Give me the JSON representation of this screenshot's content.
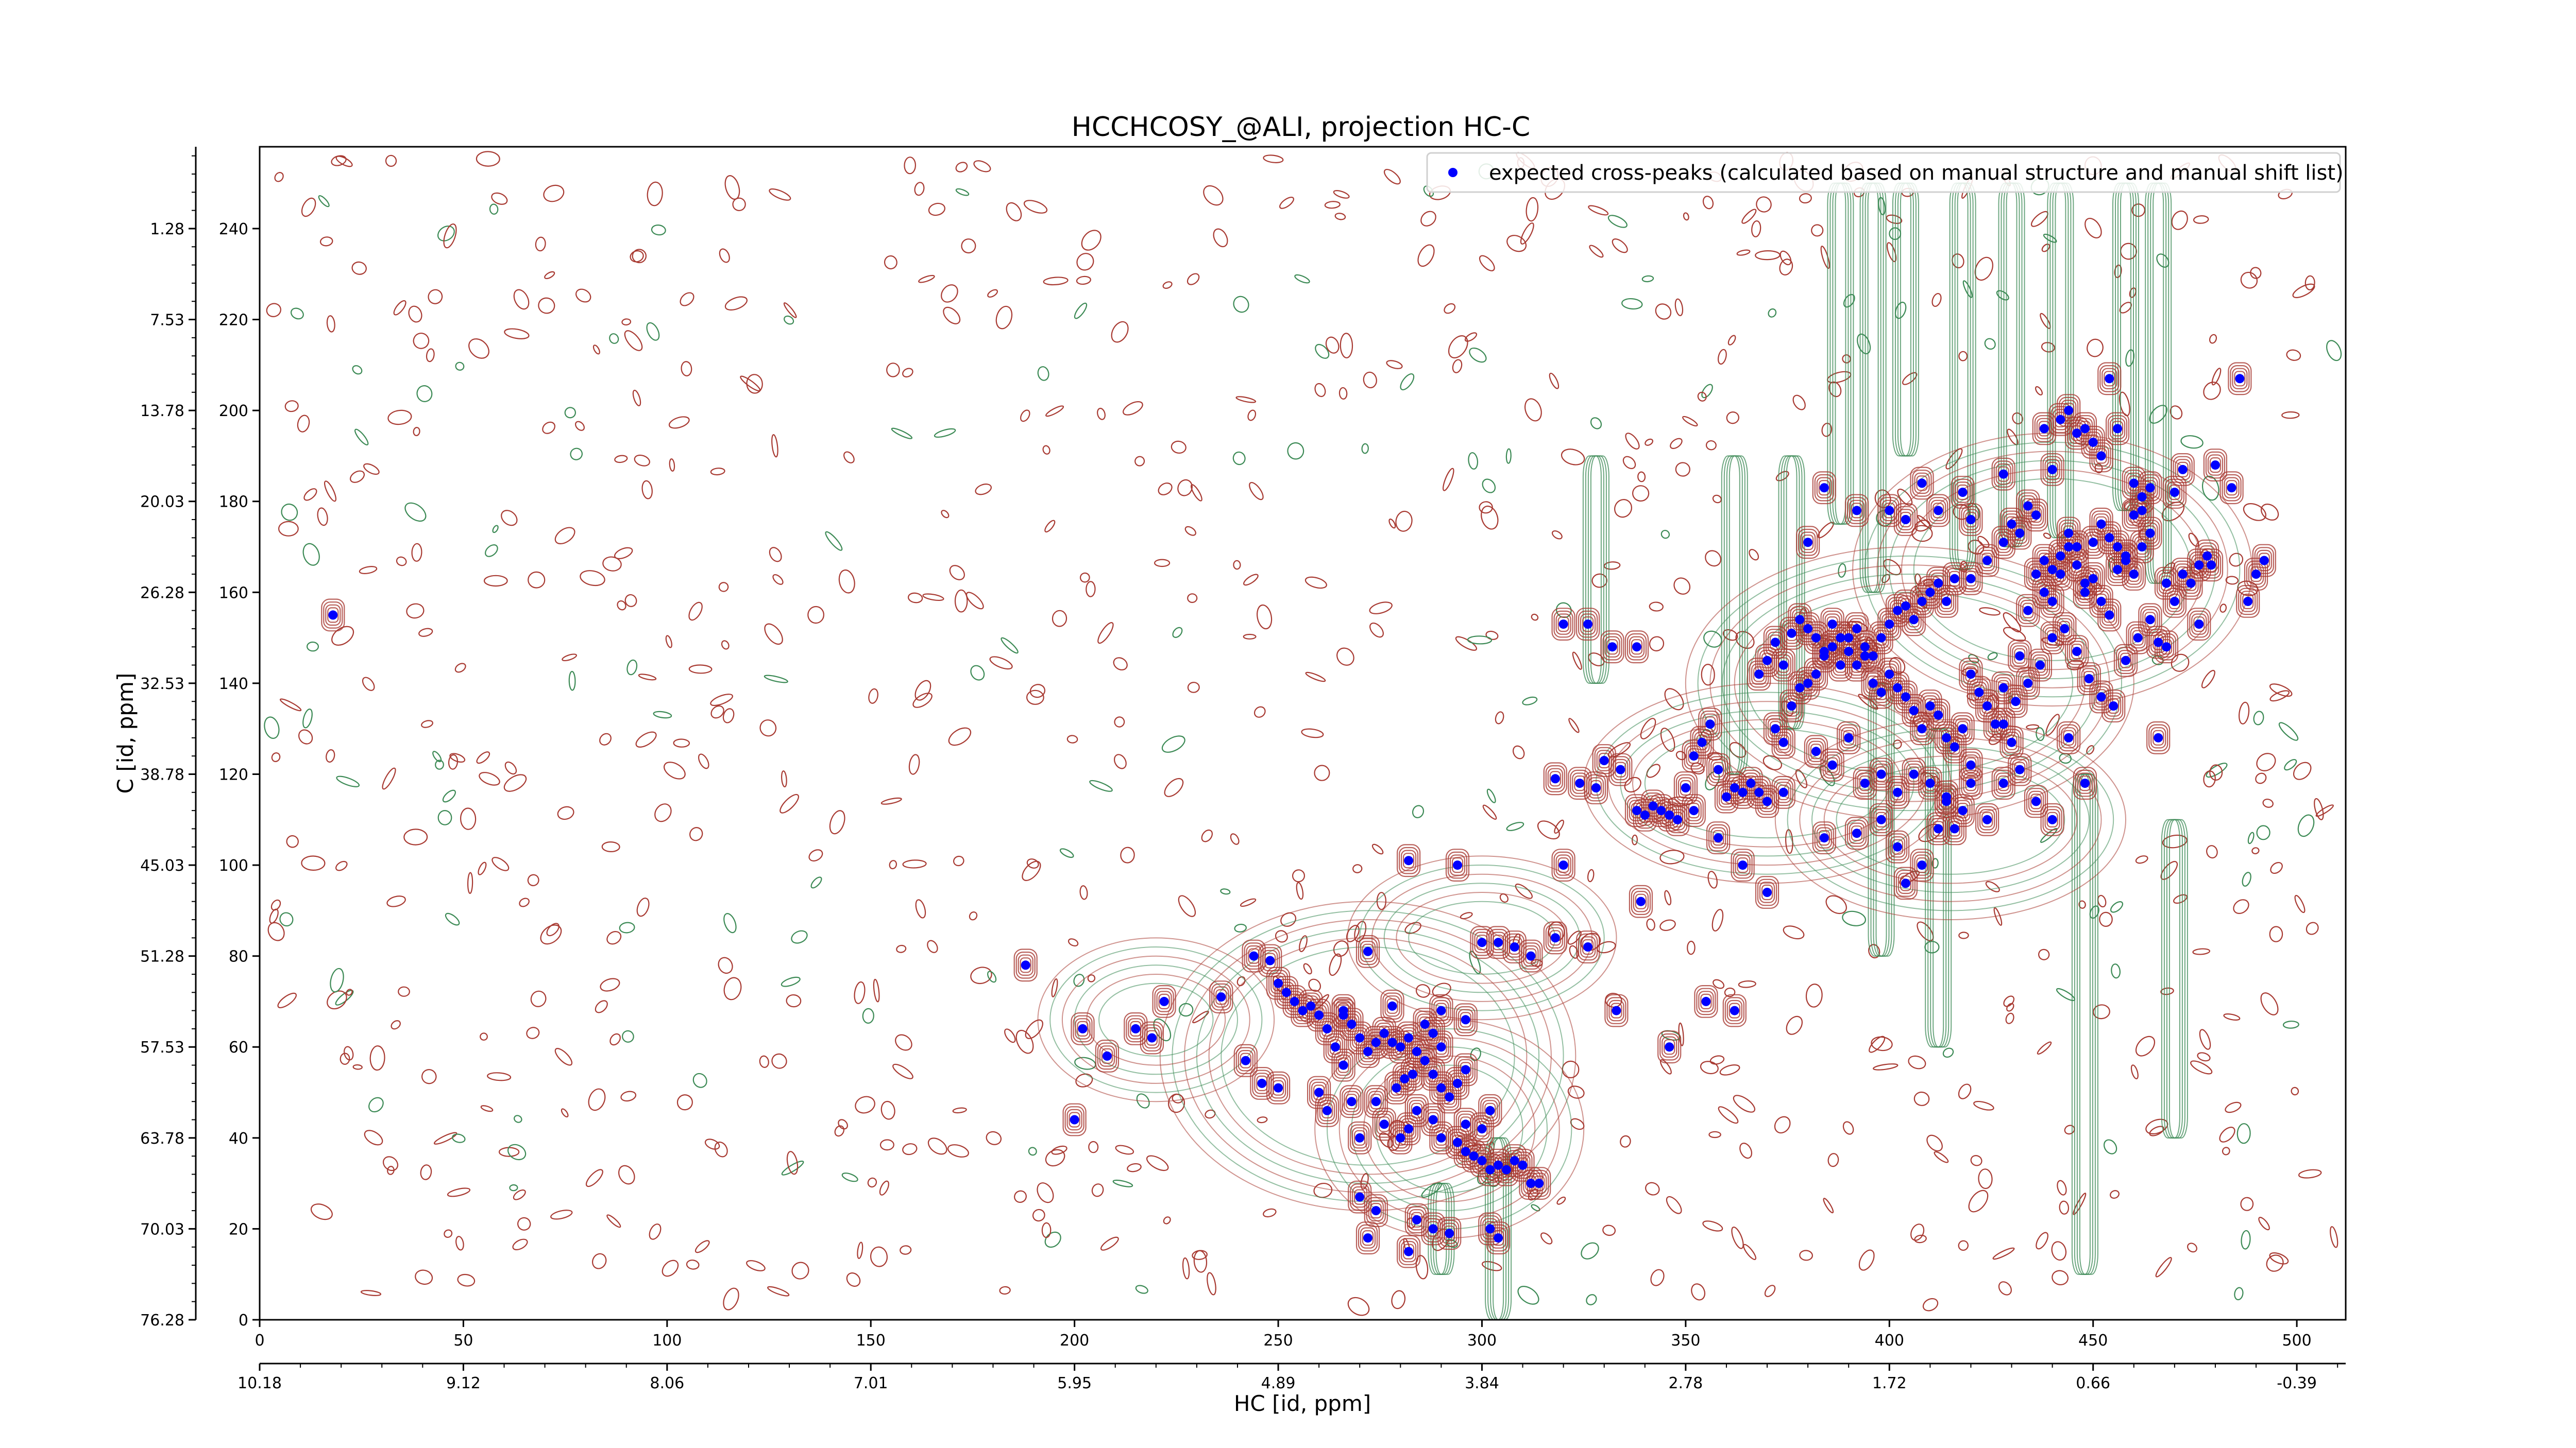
{
  "chart_data": {
    "type": "scatter",
    "title": "HCCHCOSY_@ALI, projection HC-C",
    "xlabel": "HC [id, ppm]",
    "ylabel": "C [id, ppm]",
    "x_points": {
      "range": [
        0,
        512
      ],
      "ticks": [
        0,
        50,
        100,
        150,
        200,
        250,
        300,
        350,
        400,
        450,
        500
      ]
    },
    "x_ppm": {
      "tick_labels": [
        "10.18",
        "9.12",
        "8.06",
        "7.01",
        "5.95",
        "4.89",
        "3.84",
        "2.78",
        "1.72",
        "0.66",
        "-0.39"
      ]
    },
    "y_points": {
      "range": [
        0,
        258
      ],
      "ticks": [
        0,
        20,
        40,
        60,
        80,
        100,
        120,
        140,
        160,
        180,
        200,
        220,
        240
      ]
    },
    "y_ppm": {
      "tick_labels": [
        "76.28",
        "70.03",
        "63.78",
        "57.53",
        "51.28",
        "45.03",
        "38.78",
        "32.53",
        "26.28",
        "20.03",
        "13.78",
        "7.53",
        "1.28"
      ]
    },
    "legend": {
      "position": "top-right",
      "entries": [
        "expected cross-peaks (calculated based on manual structure and manual shift list)"
      ]
    },
    "colors": {
      "expected_peaks": "#0000ff",
      "positive_contours": "#a83a32",
      "negative_contours": "#3c8a55"
    },
    "series": [
      {
        "name": "expected cross-peaks (calculated based on manual structure and manual shift list)",
        "points": [
          [
            18,
            155
          ],
          [
            188,
            78
          ],
          [
            200,
            44
          ],
          [
            202,
            64
          ],
          [
            208,
            58
          ],
          [
            215,
            64
          ],
          [
            219,
            62
          ],
          [
            222,
            70
          ],
          [
            236,
            71
          ],
          [
            242,
            57
          ],
          [
            246,
            52
          ],
          [
            250,
            51
          ],
          [
            244,
            80
          ],
          [
            248,
            79
          ],
          [
            250,
            74
          ],
          [
            252,
            72
          ],
          [
            254,
            70
          ],
          [
            256,
            68
          ],
          [
            258,
            69
          ],
          [
            260,
            67
          ],
          [
            262,
            64
          ],
          [
            264,
            60
          ],
          [
            266,
            67
          ],
          [
            268,
            65
          ],
          [
            270,
            62
          ],
          [
            272,
            59
          ],
          [
            274,
            61
          ],
          [
            276,
            63
          ],
          [
            278,
            61
          ],
          [
            280,
            60
          ],
          [
            282,
            62
          ],
          [
            284,
            59
          ],
          [
            286,
            65
          ],
          [
            288,
            63
          ],
          [
            290,
            60
          ],
          [
            260,
            50
          ],
          [
            262,
            46
          ],
          [
            266,
            56
          ],
          [
            268,
            48
          ],
          [
            270,
            40
          ],
          [
            274,
            48
          ],
          [
            276,
            43
          ],
          [
            279,
            51
          ],
          [
            281,
            53
          ],
          [
            283,
            54
          ],
          [
            286,
            57
          ],
          [
            288,
            54
          ],
          [
            290,
            51
          ],
          [
            292,
            49
          ],
          [
            294,
            52
          ],
          [
            296,
            55
          ],
          [
            280,
            40
          ],
          [
            282,
            42
          ],
          [
            284,
            46
          ],
          [
            288,
            44
          ],
          [
            290,
            40
          ],
          [
            294,
            39
          ],
          [
            296,
            37
          ],
          [
            298,
            36
          ],
          [
            300,
            35
          ],
          [
            302,
            33
          ],
          [
            304,
            34
          ],
          [
            306,
            33
          ],
          [
            308,
            35
          ],
          [
            310,
            34
          ],
          [
            312,
            30
          ],
          [
            314,
            30
          ],
          [
            300,
            42
          ],
          [
            302,
            46
          ],
          [
            296,
            43
          ],
          [
            270,
            27
          ],
          [
            272,
            18
          ],
          [
            274,
            24
          ],
          [
            282,
            15
          ],
          [
            284,
            22
          ],
          [
            288,
            20
          ],
          [
            292,
            19
          ],
          [
            302,
            20
          ],
          [
            304,
            18
          ],
          [
            266,
            68
          ],
          [
            272,
            81
          ],
          [
            278,
            69
          ],
          [
            290,
            68
          ],
          [
            296,
            66
          ],
          [
            300,
            83
          ],
          [
            304,
            83
          ],
          [
            308,
            82
          ],
          [
            312,
            80
          ],
          [
            318,
            84
          ],
          [
            326,
            82
          ],
          [
            339,
            92
          ],
          [
            346,
            60
          ],
          [
            355,
            70
          ],
          [
            362,
            68
          ],
          [
            333,
            68
          ],
          [
            282,
            101
          ],
          [
            294,
            100
          ],
          [
            320,
            100
          ],
          [
            320,
            153
          ],
          [
            326,
            153
          ],
          [
            332,
            148
          ],
          [
            338,
            148
          ],
          [
            318,
            119
          ],
          [
            324,
            118
          ],
          [
            328,
            117
          ],
          [
            330,
            123
          ],
          [
            334,
            121
          ],
          [
            338,
            112
          ],
          [
            340,
            111
          ],
          [
            342,
            113
          ],
          [
            344,
            112
          ],
          [
            346,
            111
          ],
          [
            348,
            110
          ],
          [
            350,
            117
          ],
          [
            352,
            124
          ],
          [
            354,
            127
          ],
          [
            356,
            131
          ],
          [
            358,
            121
          ],
          [
            360,
            115
          ],
          [
            362,
            117
          ],
          [
            364,
            116
          ],
          [
            366,
            118
          ],
          [
            368,
            116
          ],
          [
            370,
            114
          ],
          [
            352,
            112
          ],
          [
            358,
            106
          ],
          [
            364,
            100
          ],
          [
            370,
            94
          ],
          [
            374,
            116
          ],
          [
            372,
            130
          ],
          [
            374,
            127
          ],
          [
            376,
            135
          ],
          [
            378,
            139
          ],
          [
            380,
            140
          ],
          [
            382,
            142
          ],
          [
            384,
            146
          ],
          [
            386,
            148
          ],
          [
            388,
            144
          ],
          [
            390,
            150
          ],
          [
            392,
            152
          ],
          [
            394,
            148
          ],
          [
            396,
            146
          ],
          [
            398,
            150
          ],
          [
            400,
            153
          ],
          [
            402,
            156
          ],
          [
            404,
            157
          ],
          [
            406,
            154
          ],
          [
            408,
            158
          ],
          [
            410,
            160
          ],
          [
            412,
            162
          ],
          [
            414,
            158
          ],
          [
            416,
            163
          ],
          [
            368,
            142
          ],
          [
            370,
            145
          ],
          [
            372,
            149
          ],
          [
            374,
            144
          ],
          [
            376,
            151
          ],
          [
            378,
            154
          ],
          [
            380,
            152
          ],
          [
            382,
            150
          ],
          [
            384,
            147
          ],
          [
            386,
            153
          ],
          [
            388,
            150
          ],
          [
            390,
            147
          ],
          [
            392,
            144
          ],
          [
            394,
            146
          ],
          [
            396,
            140
          ],
          [
            398,
            138
          ],
          [
            400,
            142
          ],
          [
            402,
            139
          ],
          [
            404,
            137
          ],
          [
            406,
            134
          ],
          [
            408,
            130
          ],
          [
            410,
            135
          ],
          [
            412,
            133
          ],
          [
            414,
            128
          ],
          [
            416,
            126
          ],
          [
            418,
            130
          ],
          [
            420,
            142
          ],
          [
            422,
            138
          ],
          [
            424,
            135
          ],
          [
            426,
            131
          ],
          [
            428,
            139
          ],
          [
            430,
            127
          ],
          [
            432,
            146
          ],
          [
            434,
            156
          ],
          [
            436,
            164
          ],
          [
            438,
            160
          ],
          [
            440,
            165
          ],
          [
            442,
            168
          ],
          [
            444,
            173
          ],
          [
            446,
            170
          ],
          [
            448,
            162
          ],
          [
            450,
            171
          ],
          [
            452,
            175
          ],
          [
            454,
            172
          ],
          [
            456,
            170
          ],
          [
            458,
            168
          ],
          [
            460,
            177
          ],
          [
            462,
            181
          ],
          [
            464,
            183
          ],
          [
            382,
            125
          ],
          [
            386,
            122
          ],
          [
            390,
            128
          ],
          [
            394,
            118
          ],
          [
            398,
            120
          ],
          [
            402,
            116
          ],
          [
            406,
            120
          ],
          [
            410,
            118
          ],
          [
            414,
            115
          ],
          [
            418,
            112
          ],
          [
            420,
            118
          ],
          [
            384,
            106
          ],
          [
            392,
            107
          ],
          [
            398,
            110
          ],
          [
            402,
            104
          ],
          [
            404,
            96
          ],
          [
            408,
            100
          ],
          [
            412,
            108
          ],
          [
            414,
            114
          ],
          [
            416,
            108
          ],
          [
            420,
            122
          ],
          [
            424,
            110
          ],
          [
            428,
            118
          ],
          [
            432,
            121
          ],
          [
            436,
            114
          ],
          [
            440,
            110
          ],
          [
            444,
            128
          ],
          [
            448,
            118
          ],
          [
            420,
            163
          ],
          [
            424,
            167
          ],
          [
            428,
            171
          ],
          [
            430,
            175
          ],
          [
            432,
            173
          ],
          [
            434,
            179
          ],
          [
            436,
            177
          ],
          [
            438,
            167
          ],
          [
            440,
            158
          ],
          [
            442,
            164
          ],
          [
            444,
            170
          ],
          [
            446,
            166
          ],
          [
            448,
            160
          ],
          [
            450,
            163
          ],
          [
            452,
            158
          ],
          [
            454,
            155
          ],
          [
            456,
            165
          ],
          [
            458,
            167
          ],
          [
            460,
            164
          ],
          [
            462,
            170
          ],
          [
            464,
            173
          ],
          [
            380,
            171
          ],
          [
            384,
            183
          ],
          [
            392,
            178
          ],
          [
            400,
            178
          ],
          [
            404,
            176
          ],
          [
            408,
            184
          ],
          [
            412,
            178
          ],
          [
            418,
            182
          ],
          [
            420,
            176
          ],
          [
            428,
            186
          ],
          [
            440,
            187
          ],
          [
            446,
            195
          ],
          [
            448,
            196
          ],
          [
            450,
            193
          ],
          [
            452,
            190
          ],
          [
            438,
            196
          ],
          [
            442,
            198
          ],
          [
            444,
            200
          ],
          [
            456,
            196
          ],
          [
            460,
            184
          ],
          [
            462,
            178
          ],
          [
            428,
            131
          ],
          [
            431,
            136
          ],
          [
            434,
            140
          ],
          [
            437,
            144
          ],
          [
            440,
            150
          ],
          [
            443,
            152
          ],
          [
            446,
            147
          ],
          [
            449,
            141
          ],
          [
            452,
            137
          ],
          [
            455,
            135
          ],
          [
            458,
            145
          ],
          [
            461,
            150
          ],
          [
            464,
            154
          ],
          [
            466,
            149
          ],
          [
            468,
            148
          ],
          [
            470,
            158
          ],
          [
            472,
            164
          ],
          [
            474,
            162
          ],
          [
            476,
            166
          ],
          [
            478,
            168
          ],
          [
            454,
            207
          ],
          [
            468,
            162
          ],
          [
            476,
            153
          ],
          [
            479,
            166
          ],
          [
            486,
            207
          ],
          [
            488,
            158
          ],
          [
            490,
            164
          ],
          [
            492,
            167
          ],
          [
            466,
            128
          ],
          [
            470,
            182
          ],
          [
            472,
            187
          ],
          [
            480,
            188
          ],
          [
            484,
            183
          ]
        ]
      }
    ]
  }
}
